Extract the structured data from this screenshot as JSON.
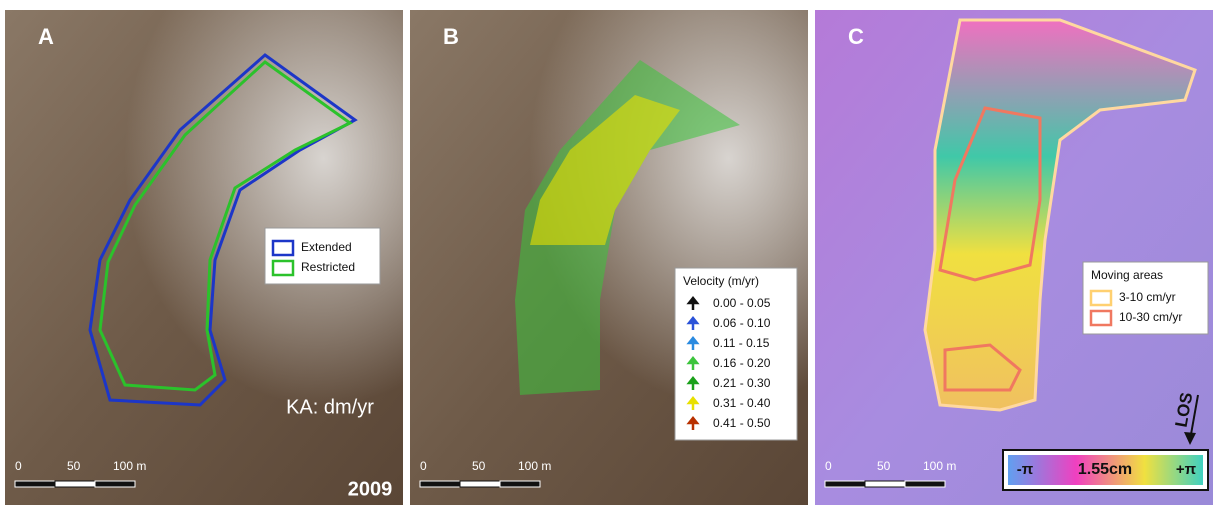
{
  "panels": [
    {
      "label": "A",
      "note": "KA: dm/yr",
      "year": "2009",
      "scale": [
        "0",
        "50",
        "100 m"
      ],
      "legend": [
        {
          "label": "Extended",
          "color": "#1c36c8"
        },
        {
          "label": "Restricted",
          "color": "#2bc22b"
        }
      ]
    },
    {
      "label": "B",
      "scale": [
        "0",
        "50",
        "100 m"
      ],
      "legend_title": "Velocity (m/yr)",
      "legend": [
        {
          "label": "0.00 - 0.05",
          "color": "#111111"
        },
        {
          "label": "0.06 - 0.10",
          "color": "#2a52d8"
        },
        {
          "label": "0.11 - 0.15",
          "color": "#2a8ae0"
        },
        {
          "label": "0.16 - 0.20",
          "color": "#3cc43c"
        },
        {
          "label": "0.21 - 0.30",
          "color": "#1aa01a"
        },
        {
          "label": "0.31 - 0.40",
          "color": "#e8e000"
        },
        {
          "label": "0.41 - 0.50",
          "color": "#b83000"
        }
      ]
    },
    {
      "label": "C",
      "scale": [
        "0",
        "50",
        "100 m"
      ],
      "legend_title": "Moving areas",
      "los": "LOS",
      "legend": [
        {
          "label": "3-10 cm/yr",
          "color": "#ffd070"
        },
        {
          "label": "10-30 cm/yr",
          "color": "#f07860"
        }
      ],
      "colorbar": [
        "-π",
        "1.55cm",
        "+π"
      ]
    }
  ]
}
